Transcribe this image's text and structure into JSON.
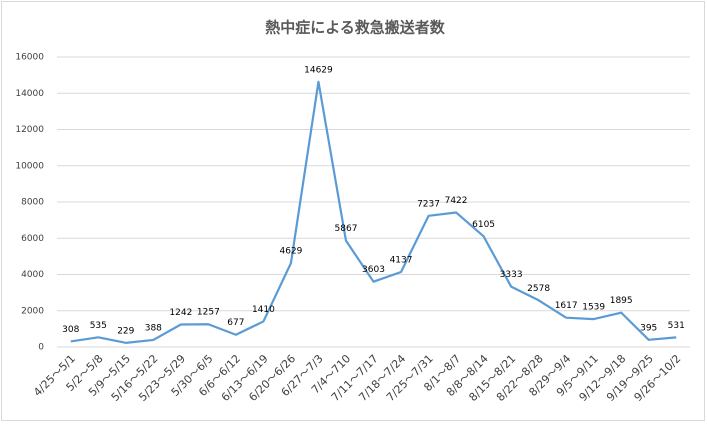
{
  "chart_data": {
    "type": "line",
    "title": "熱中症による救急搬送者数",
    "categories": [
      "4/25～5/1",
      "5/2～5/8",
      "5/9～5/15",
      "5/16～5/22",
      "5/23～5/29",
      "5/30～6/5",
      "6/6～6/12",
      "6/13～6/19",
      "6/20～6/26",
      "6/27～7/3",
      "7/4～710",
      "7/11～7/17",
      "7/18～7/24",
      "7/25～7/31",
      "8/1～8/7",
      "8/8～8/14",
      "8/15～8/21",
      "8/22～8/28",
      "8/29～9/4",
      "9/5～9/11",
      "9/12～9/18",
      "9/19～9/25",
      "9/26～10/2"
    ],
    "values": [
      308,
      535,
      229,
      388,
      1242,
      1257,
      677,
      1410,
      4629,
      14629,
      5867,
      3603,
      4137,
      7237,
      7422,
      6105,
      3333,
      2578,
      1617,
      1539,
      1895,
      395,
      531
    ],
    "color": "#5b9bd5",
    "ylim": [
      0,
      16000
    ],
    "yticks": [
      0,
      2000,
      4000,
      6000,
      8000,
      10000,
      12000,
      14000,
      16000
    ],
    "grid": true
  }
}
